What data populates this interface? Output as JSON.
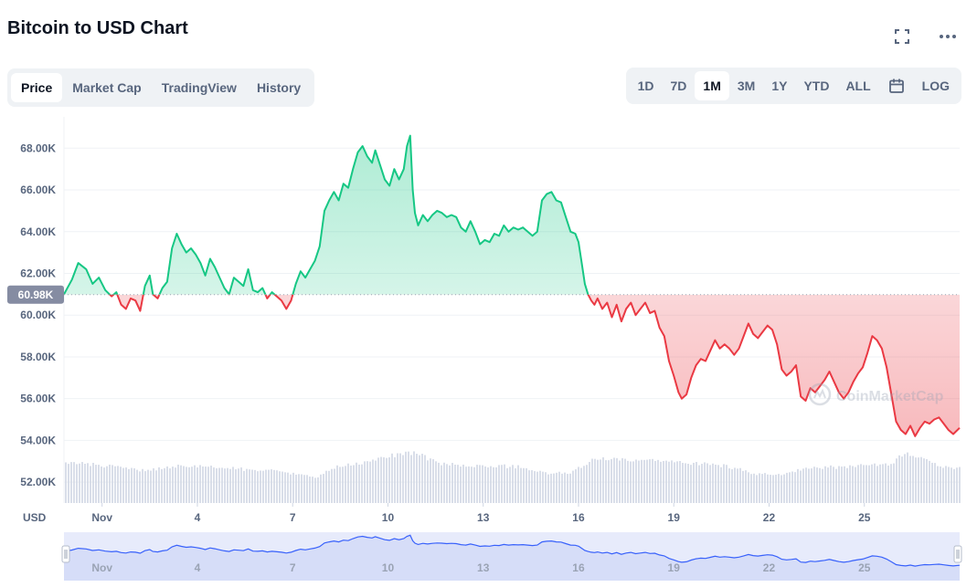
{
  "title": "Bitcoin to USD Chart",
  "tabs": [
    {
      "label": "Price",
      "active": true
    },
    {
      "label": "Market Cap",
      "active": false
    },
    {
      "label": "TradingView",
      "active": false
    },
    {
      "label": "History",
      "active": false
    }
  ],
  "ranges": [
    {
      "label": "1D",
      "active": false
    },
    {
      "label": "7D",
      "active": false
    },
    {
      "label": "1M",
      "active": true
    },
    {
      "label": "3M",
      "active": false
    },
    {
      "label": "1Y",
      "active": false
    },
    {
      "label": "YTD",
      "active": false
    },
    {
      "label": "ALL",
      "active": false
    }
  ],
  "log_label": "LOG",
  "watermark": "CoinMarketCap",
  "chart_data": {
    "type": "area",
    "ylabel": "USD",
    "ylim": [
      51000,
      69500
    ],
    "y_ticks": [
      52000,
      54000,
      56000,
      58000,
      60000,
      62000,
      64000,
      66000,
      68000
    ],
    "y_tick_labels": [
      "52.00K",
      "54.00K",
      "56.00K",
      "58.00K",
      "60.00K",
      "62.00K",
      "64.00K",
      "66.00K",
      "68.00K"
    ],
    "x_ticks": [
      {
        "day": 1,
        "label": "Nov"
      },
      {
        "day": 4,
        "label": "4"
      },
      {
        "day": 7,
        "label": "7"
      },
      {
        "day": 10,
        "label": "10"
      },
      {
        "day": 13,
        "label": "13"
      },
      {
        "day": 16,
        "label": "16"
      },
      {
        "day": 19,
        "label": "19"
      },
      {
        "day": 22,
        "label": "22"
      },
      {
        "day": 25,
        "label": "25"
      }
    ],
    "reference_price": 60980,
    "reference_label": "60.98K",
    "up_color": "#16c784",
    "down_color": "#ea3943",
    "x_range": [
      -0.2,
      28.0
    ],
    "prices": [
      [
        -0.2,
        61000
      ],
      [
        0.05,
        61700
      ],
      [
        0.25,
        62500
      ],
      [
        0.5,
        62200
      ],
      [
        0.7,
        61500
      ],
      [
        0.9,
        61800
      ],
      [
        1.1,
        61200
      ],
      [
        1.3,
        60900
      ],
      [
        1.45,
        61100
      ],
      [
        1.6,
        60500
      ],
      [
        1.75,
        60300
      ],
      [
        1.9,
        60800
      ],
      [
        2.05,
        60700
      ],
      [
        2.2,
        60200
      ],
      [
        2.35,
        61400
      ],
      [
        2.5,
        61900
      ],
      [
        2.6,
        61000
      ],
      [
        2.75,
        60800
      ],
      [
        2.9,
        61300
      ],
      [
        3.05,
        61600
      ],
      [
        3.2,
        63200
      ],
      [
        3.35,
        63900
      ],
      [
        3.5,
        63400
      ],
      [
        3.65,
        63000
      ],
      [
        3.8,
        63200
      ],
      [
        3.95,
        62900
      ],
      [
        4.1,
        62500
      ],
      [
        4.25,
        61900
      ],
      [
        4.4,
        62700
      ],
      [
        4.55,
        62300
      ],
      [
        4.7,
        61800
      ],
      [
        4.85,
        61300
      ],
      [
        5.0,
        61000
      ],
      [
        5.15,
        61800
      ],
      [
        5.3,
        61600
      ],
      [
        5.45,
        61400
      ],
      [
        5.6,
        62200
      ],
      [
        5.75,
        61200
      ],
      [
        5.9,
        61100
      ],
      [
        6.05,
        61300
      ],
      [
        6.2,
        60800
      ],
      [
        6.35,
        61100
      ],
      [
        6.5,
        60900
      ],
      [
        6.65,
        60700
      ],
      [
        6.8,
        60300
      ],
      [
        6.95,
        60700
      ],
      [
        7.1,
        61500
      ],
      [
        7.25,
        62100
      ],
      [
        7.4,
        61800
      ],
      [
        7.55,
        62200
      ],
      [
        7.7,
        62600
      ],
      [
        7.85,
        63300
      ],
      [
        8.0,
        65000
      ],
      [
        8.15,
        65500
      ],
      [
        8.3,
        65900
      ],
      [
        8.45,
        65500
      ],
      [
        8.6,
        66300
      ],
      [
        8.75,
        66100
      ],
      [
        8.9,
        67000
      ],
      [
        9.05,
        67800
      ],
      [
        9.2,
        68100
      ],
      [
        9.35,
        67600
      ],
      [
        9.5,
        67300
      ],
      [
        9.6,
        67900
      ],
      [
        9.75,
        67200
      ],
      [
        9.9,
        66500
      ],
      [
        10.05,
        66200
      ],
      [
        10.2,
        67000
      ],
      [
        10.35,
        66500
      ],
      [
        10.5,
        67000
      ],
      [
        10.6,
        68100
      ],
      [
        10.7,
        68600
      ],
      [
        10.78,
        66000
      ],
      [
        10.85,
        64900
      ],
      [
        10.95,
        64300
      ],
      [
        11.1,
        64800
      ],
      [
        11.25,
        64500
      ],
      [
        11.4,
        64800
      ],
      [
        11.55,
        65000
      ],
      [
        11.7,
        64900
      ],
      [
        11.85,
        64700
      ],
      [
        12.0,
        64800
      ],
      [
        12.15,
        64700
      ],
      [
        12.3,
        64200
      ],
      [
        12.45,
        64000
      ],
      [
        12.6,
        64500
      ],
      [
        12.75,
        64000
      ],
      [
        12.9,
        63400
      ],
      [
        13.05,
        63600
      ],
      [
        13.2,
        63500
      ],
      [
        13.35,
        63900
      ],
      [
        13.5,
        63800
      ],
      [
        13.65,
        64300
      ],
      [
        13.8,
        64000
      ],
      [
        13.95,
        64200
      ],
      [
        14.1,
        64100
      ],
      [
        14.25,
        64200
      ],
      [
        14.4,
        64000
      ],
      [
        14.55,
        63800
      ],
      [
        14.7,
        64000
      ],
      [
        14.85,
        65500
      ],
      [
        15.0,
        65800
      ],
      [
        15.15,
        65900
      ],
      [
        15.3,
        65500
      ],
      [
        15.45,
        65400
      ],
      [
        15.6,
        64700
      ],
      [
        15.75,
        64000
      ],
      [
        15.9,
        63900
      ],
      [
        16.0,
        63500
      ],
      [
        16.1,
        62500
      ],
      [
        16.2,
        61500
      ],
      [
        16.3,
        61000
      ],
      [
        16.4,
        60700
      ],
      [
        16.5,
        60500
      ],
      [
        16.6,
        60800
      ],
      [
        16.75,
        60300
      ],
      [
        16.9,
        60600
      ],
      [
        17.05,
        59900
      ],
      [
        17.2,
        60500
      ],
      [
        17.35,
        59700
      ],
      [
        17.5,
        60300
      ],
      [
        17.65,
        60600
      ],
      [
        17.8,
        60000
      ],
      [
        17.95,
        60300
      ],
      [
        18.1,
        60600
      ],
      [
        18.25,
        60100
      ],
      [
        18.4,
        60200
      ],
      [
        18.55,
        59400
      ],
      [
        18.7,
        59000
      ],
      [
        18.85,
        57800
      ],
      [
        19.0,
        57100
      ],
      [
        19.15,
        56300
      ],
      [
        19.25,
        56000
      ],
      [
        19.4,
        56200
      ],
      [
        19.55,
        57000
      ],
      [
        19.7,
        57600
      ],
      [
        19.85,
        57900
      ],
      [
        20.0,
        57800
      ],
      [
        20.15,
        58300
      ],
      [
        20.3,
        58800
      ],
      [
        20.45,
        58400
      ],
      [
        20.6,
        58600
      ],
      [
        20.75,
        58400
      ],
      [
        20.9,
        58100
      ],
      [
        21.05,
        58400
      ],
      [
        21.2,
        59000
      ],
      [
        21.35,
        59600
      ],
      [
        21.5,
        59100
      ],
      [
        21.65,
        58900
      ],
      [
        21.8,
        59200
      ],
      [
        21.95,
        59500
      ],
      [
        22.1,
        59300
      ],
      [
        22.25,
        58600
      ],
      [
        22.4,
        57400
      ],
      [
        22.55,
        57100
      ],
      [
        22.7,
        57300
      ],
      [
        22.85,
        57600
      ],
      [
        23.0,
        56100
      ],
      [
        23.15,
        55900
      ],
      [
        23.3,
        56500
      ],
      [
        23.45,
        56300
      ],
      [
        23.6,
        56600
      ],
      [
        23.75,
        56900
      ],
      [
        23.9,
        57300
      ],
      [
        24.05,
        56800
      ],
      [
        24.2,
        56300
      ],
      [
        24.35,
        56000
      ],
      [
        24.5,
        56300
      ],
      [
        24.65,
        56800
      ],
      [
        24.8,
        57200
      ],
      [
        24.95,
        57500
      ],
      [
        25.1,
        58200
      ],
      [
        25.25,
        59000
      ],
      [
        25.4,
        58800
      ],
      [
        25.55,
        58400
      ],
      [
        25.7,
        57500
      ],
      [
        25.85,
        56200
      ],
      [
        26.0,
        54900
      ],
      [
        26.15,
        54500
      ],
      [
        26.3,
        54300
      ],
      [
        26.45,
        54700
      ],
      [
        26.6,
        54200
      ],
      [
        26.75,
        54600
      ],
      [
        26.9,
        54900
      ],
      [
        27.05,
        54800
      ],
      [
        27.2,
        55000
      ],
      [
        27.35,
        55100
      ],
      [
        27.5,
        54800
      ],
      [
        27.65,
        54500
      ],
      [
        27.8,
        54300
      ],
      [
        28.0,
        54600
      ]
    ],
    "volumes": [
      [
        -0.2,
        0.5
      ],
      [
        0.8,
        0.47
      ],
      [
        1.8,
        0.42
      ],
      [
        2.3,
        0.4
      ],
      [
        3.2,
        0.45
      ],
      [
        4.2,
        0.45
      ],
      [
        5.2,
        0.42
      ],
      [
        6.2,
        0.4
      ],
      [
        7.0,
        0.36
      ],
      [
        7.7,
        0.31
      ],
      [
        8.3,
        0.44
      ],
      [
        9.3,
        0.5
      ],
      [
        10.3,
        0.6
      ],
      [
        10.8,
        0.62
      ],
      [
        11.6,
        0.49
      ],
      [
        12.5,
        0.45
      ],
      [
        13.3,
        0.46
      ],
      [
        14.2,
        0.44
      ],
      [
        15.0,
        0.36
      ],
      [
        15.8,
        0.38
      ],
      [
        16.4,
        0.53
      ],
      [
        16.8,
        0.54
      ],
      [
        17.6,
        0.52
      ],
      [
        18.2,
        0.52
      ],
      [
        19.4,
        0.49
      ],
      [
        20.2,
        0.48
      ],
      [
        20.9,
        0.43
      ],
      [
        21.5,
        0.36
      ],
      [
        22.3,
        0.35
      ],
      [
        23.2,
        0.44
      ],
      [
        24.1,
        0.44
      ],
      [
        25.1,
        0.46
      ],
      [
        25.8,
        0.48
      ],
      [
        26.2,
        0.6
      ],
      [
        26.9,
        0.56
      ],
      [
        27.3,
        0.45
      ],
      [
        28.0,
        0.43
      ]
    ]
  }
}
